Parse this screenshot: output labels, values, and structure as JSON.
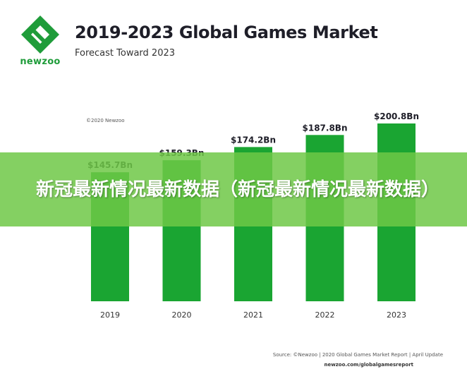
{
  "brand": {
    "logo_text": "newzoo",
    "logo_icon": "newzoo-logo-icon",
    "color": "#1f9c3a"
  },
  "header": {
    "title": "2019-2023 Global Games Market",
    "subtitle": "Forecast Toward 2023"
  },
  "copyright": "©2020 Newzoo",
  "overlay": {
    "text": "新冠最新情况最新数据（新冠最新情况最新数据）",
    "color": "#6ec846"
  },
  "footer": {
    "source": "Source: ©Newzoo | 2020 Global Games Market Report | April Update",
    "url": "newzoo.com/globalgamesreport"
  },
  "chart_data": {
    "type": "bar",
    "categories": [
      "2019",
      "2020",
      "2021",
      "2022",
      "2023"
    ],
    "values": [
      145.7,
      159.3,
      174.2,
      187.8,
      200.8
    ],
    "value_labels": [
      "$145.7Bn",
      "$159.3Bn",
      "$174.2Bn",
      "$187.8Bn",
      "$200.8Bn"
    ],
    "title": "2019-2023 Global Games Market",
    "subtitle": "Forecast Toward 2023",
    "xlabel": "",
    "ylabel": "",
    "ylim": [
      0,
      200.8
    ],
    "grid": false,
    "bar_color": "#1aa532"
  }
}
